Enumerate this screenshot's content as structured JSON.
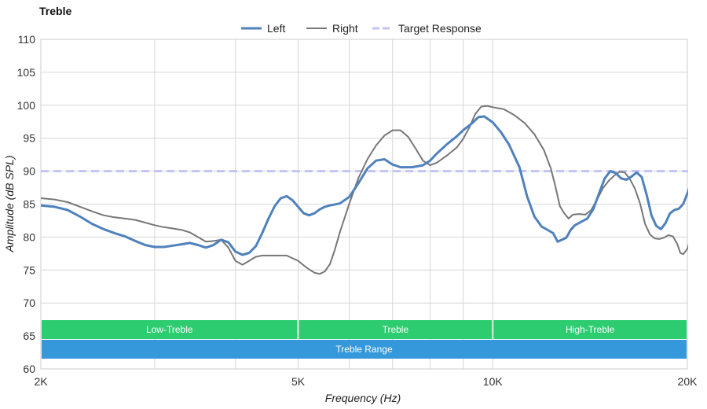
{
  "chart_data": {
    "type": "line",
    "title": "Treble",
    "xlabel": "Frequency (Hz)",
    "ylabel": "Amplitude (dB SPL)",
    "x_scale": "log",
    "xlim": [
      2000,
      20000
    ],
    "ylim": [
      60,
      110
    ],
    "y_ticks": [
      60,
      65,
      70,
      75,
      80,
      85,
      90,
      95,
      100,
      105,
      110
    ],
    "x_tick_labels": [
      {
        "value": 2000,
        "label": "2K"
      },
      {
        "value": 5000,
        "label": "5K"
      },
      {
        "value": 10000,
        "label": "10K"
      },
      {
        "value": 20000,
        "label": "20K"
      }
    ],
    "x_gridlines": [
      2000,
      3000,
      4000,
      5000,
      6000,
      7000,
      8000,
      9000,
      10000,
      20000
    ],
    "grid": true,
    "legend_position": "top-center",
    "series": [
      {
        "name": "Left",
        "color": "#4f81bd",
        "style": "solid",
        "points": [
          [
            2000,
            84.8
          ],
          [
            2100,
            84.6
          ],
          [
            2200,
            84.1
          ],
          [
            2300,
            83.1
          ],
          [
            2400,
            82.0
          ],
          [
            2500,
            81.2
          ],
          [
            2600,
            80.6
          ],
          [
            2700,
            80.1
          ],
          [
            2800,
            79.4
          ],
          [
            2900,
            78.8
          ],
          [
            3000,
            78.5
          ],
          [
            3100,
            78.5
          ],
          [
            3200,
            78.7
          ],
          [
            3300,
            78.9
          ],
          [
            3400,
            79.1
          ],
          [
            3500,
            78.8
          ],
          [
            3600,
            78.4
          ],
          [
            3700,
            78.8
          ],
          [
            3800,
            79.6
          ],
          [
            3900,
            79.2
          ],
          [
            4000,
            77.8
          ],
          [
            4100,
            77.3
          ],
          [
            4200,
            77.6
          ],
          [
            4300,
            78.6
          ],
          [
            4400,
            80.6
          ],
          [
            4500,
            82.8
          ],
          [
            4600,
            84.7
          ],
          [
            4700,
            85.9
          ],
          [
            4800,
            86.2
          ],
          [
            4900,
            85.6
          ],
          [
            5000,
            84.6
          ],
          [
            5100,
            83.6
          ],
          [
            5200,
            83.3
          ],
          [
            5300,
            83.6
          ],
          [
            5400,
            84.2
          ],
          [
            5500,
            84.6
          ],
          [
            5600,
            84.8
          ],
          [
            5800,
            85.1
          ],
          [
            6000,
            86.1
          ],
          [
            6200,
            88.2
          ],
          [
            6400,
            90.4
          ],
          [
            6600,
            91.6
          ],
          [
            6800,
            91.8
          ],
          [
            7000,
            91.0
          ],
          [
            7200,
            90.6
          ],
          [
            7500,
            90.6
          ],
          [
            7800,
            90.9
          ],
          [
            8000,
            91.6
          ],
          [
            8200,
            92.7
          ],
          [
            8500,
            94.1
          ],
          [
            8800,
            95.3
          ],
          [
            9000,
            96.2
          ],
          [
            9300,
            97.3
          ],
          [
            9500,
            98.2
          ],
          [
            9700,
            98.3
          ],
          [
            10000,
            97.4
          ],
          [
            10300,
            95.9
          ],
          [
            10600,
            94.0
          ],
          [
            11000,
            90.6
          ],
          [
            11300,
            86.2
          ],
          [
            11600,
            83.1
          ],
          [
            11900,
            81.6
          ],
          [
            12200,
            81.0
          ],
          [
            12400,
            80.6
          ],
          [
            12600,
            79.3
          ],
          [
            12800,
            79.6
          ],
          [
            13000,
            79.9
          ],
          [
            13200,
            81.1
          ],
          [
            13400,
            81.8
          ],
          [
            13700,
            82.3
          ],
          [
            14000,
            82.8
          ],
          [
            14300,
            84.2
          ],
          [
            14600,
            86.6
          ],
          [
            14900,
            88.9
          ],
          [
            15200,
            90.0
          ],
          [
            15500,
            89.7
          ],
          [
            15800,
            88.9
          ],
          [
            16100,
            88.7
          ],
          [
            16400,
            89.2
          ],
          [
            16700,
            89.8
          ],
          [
            17000,
            89.1
          ],
          [
            17300,
            86.4
          ],
          [
            17600,
            83.3
          ],
          [
            17900,
            81.7
          ],
          [
            18200,
            81.2
          ],
          [
            18500,
            82.1
          ],
          [
            18800,
            83.6
          ],
          [
            19100,
            84.1
          ],
          [
            19400,
            84.3
          ],
          [
            19700,
            85.0
          ],
          [
            20000,
            86.6
          ],
          [
            20400,
            89.0
          ],
          [
            20800,
            90.8
          ]
        ]
      },
      {
        "name": "Right",
        "color": "#777777",
        "style": "solid",
        "points": [
          [
            2000,
            85.9
          ],
          [
            2100,
            85.7
          ],
          [
            2200,
            85.3
          ],
          [
            2300,
            84.6
          ],
          [
            2400,
            83.9
          ],
          [
            2500,
            83.3
          ],
          [
            2600,
            83.0
          ],
          [
            2700,
            82.8
          ],
          [
            2800,
            82.6
          ],
          [
            2900,
            82.2
          ],
          [
            3000,
            81.8
          ],
          [
            3100,
            81.5
          ],
          [
            3200,
            81.3
          ],
          [
            3300,
            81.1
          ],
          [
            3400,
            80.7
          ],
          [
            3500,
            80.0
          ],
          [
            3600,
            79.3
          ],
          [
            3700,
            79.4
          ],
          [
            3800,
            79.6
          ],
          [
            3900,
            78.4
          ],
          [
            4000,
            76.4
          ],
          [
            4100,
            75.8
          ],
          [
            4200,
            76.4
          ],
          [
            4300,
            77.0
          ],
          [
            4400,
            77.2
          ],
          [
            4600,
            77.2
          ],
          [
            4800,
            77.2
          ],
          [
            5000,
            76.4
          ],
          [
            5100,
            75.7
          ],
          [
            5200,
            75.1
          ],
          [
            5300,
            74.6
          ],
          [
            5400,
            74.4
          ],
          [
            5500,
            74.8
          ],
          [
            5600,
            75.9
          ],
          [
            5700,
            78.1
          ],
          [
            5800,
            80.7
          ],
          [
            6000,
            85.1
          ],
          [
            6200,
            89.0
          ],
          [
            6400,
            91.8
          ],
          [
            6600,
            93.9
          ],
          [
            6800,
            95.4
          ],
          [
            7000,
            96.2
          ],
          [
            7200,
            96.2
          ],
          [
            7400,
            95.2
          ],
          [
            7600,
            93.4
          ],
          [
            7800,
            91.6
          ],
          [
            8000,
            90.9
          ],
          [
            8200,
            91.3
          ],
          [
            8500,
            92.4
          ],
          [
            8800,
            93.6
          ],
          [
            9000,
            94.9
          ],
          [
            9200,
            96.6
          ],
          [
            9400,
            98.7
          ],
          [
            9600,
            99.8
          ],
          [
            9800,
            99.9
          ],
          [
            10000,
            99.7
          ],
          [
            10400,
            99.4
          ],
          [
            10800,
            98.5
          ],
          [
            11200,
            97.3
          ],
          [
            11600,
            95.6
          ],
          [
            12000,
            93.2
          ],
          [
            12300,
            90.4
          ],
          [
            12500,
            87.7
          ],
          [
            12700,
            84.7
          ],
          [
            12900,
            83.6
          ],
          [
            13100,
            82.8
          ],
          [
            13300,
            83.4
          ],
          [
            13600,
            83.5
          ],
          [
            13900,
            83.4
          ],
          [
            14200,
            84.1
          ],
          [
            14500,
            85.7
          ],
          [
            14800,
            87.4
          ],
          [
            15100,
            88.5
          ],
          [
            15400,
            89.3
          ],
          [
            15700,
            89.9
          ],
          [
            16000,
            89.8
          ],
          [
            16300,
            88.8
          ],
          [
            16600,
            87.3
          ],
          [
            16900,
            85.1
          ],
          [
            17200,
            82.0
          ],
          [
            17500,
            80.4
          ],
          [
            17800,
            79.8
          ],
          [
            18100,
            79.7
          ],
          [
            18400,
            79.9
          ],
          [
            18700,
            80.3
          ],
          [
            19000,
            80.1
          ],
          [
            19300,
            78.9
          ],
          [
            19500,
            77.6
          ],
          [
            19700,
            77.4
          ],
          [
            20000,
            78.2
          ],
          [
            20300,
            80.3
          ],
          [
            20600,
            82.6
          ],
          [
            20800,
            84.1
          ]
        ]
      },
      {
        "name": "Target Response",
        "color": "#c3c3f5",
        "style": "dashed",
        "points": [
          [
            2000,
            90
          ],
          [
            20800,
            90
          ]
        ]
      }
    ],
    "bands": [
      {
        "label": "Low-Treble",
        "from": 2000,
        "to": 5000,
        "color": "#2ecc71",
        "row": 1
      },
      {
        "label": "Treble",
        "from": 5000,
        "to": 10000,
        "color": "#2ecc71",
        "row": 1
      },
      {
        "label": "High-Treble",
        "from": 10000,
        "to": 20000,
        "color": "#2ecc71",
        "row": 1
      },
      {
        "label": "Treble Range",
        "from": 2000,
        "to": 20000,
        "color": "#3498db",
        "row": 2
      }
    ]
  }
}
